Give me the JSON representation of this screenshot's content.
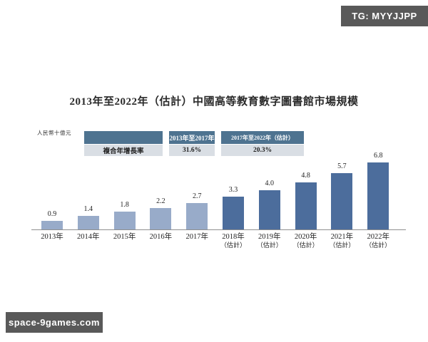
{
  "watermarks": {
    "top_right": "TG: MYYJJPP",
    "bottom_left": "space-9games.com"
  },
  "colors": {
    "bar_actual": "#98abc9",
    "bar_estimate": "#4c6d9c",
    "table_header_bg": "#4e7390",
    "table_row_bg": "#d9dee4",
    "badge_bg": "#595959",
    "axis_line": "#8f8f8f"
  },
  "chart_data": {
    "type": "bar",
    "title": "2013年至2022年（估計）中國高等教育數字圖書館市場規模",
    "ylabel": "人民幣十億元",
    "xlabel": "",
    "categories": [
      "2013年",
      "2014年",
      "2015年",
      "2016年",
      "2017年",
      "2018年（估計）",
      "2019年（估計）",
      "2020年（估計）",
      "2021年（估計）",
      "2022年（估計）"
    ],
    "values": [
      0.9,
      1.4,
      1.8,
      2.2,
      2.7,
      3.3,
      4.0,
      4.8,
      5.7,
      6.8
    ],
    "estimated_from_index": 5,
    "data_labels": true,
    "grid": false,
    "legend": "none",
    "ylim": [
      0,
      7.5
    ],
    "cagr_table": {
      "row_label": "複合年增長率",
      "columns": [
        {
          "header": "2013年至2017年",
          "value": "31.6%"
        },
        {
          "header": "2017年至2022年（估計）",
          "value": "20.3%"
        }
      ]
    }
  }
}
